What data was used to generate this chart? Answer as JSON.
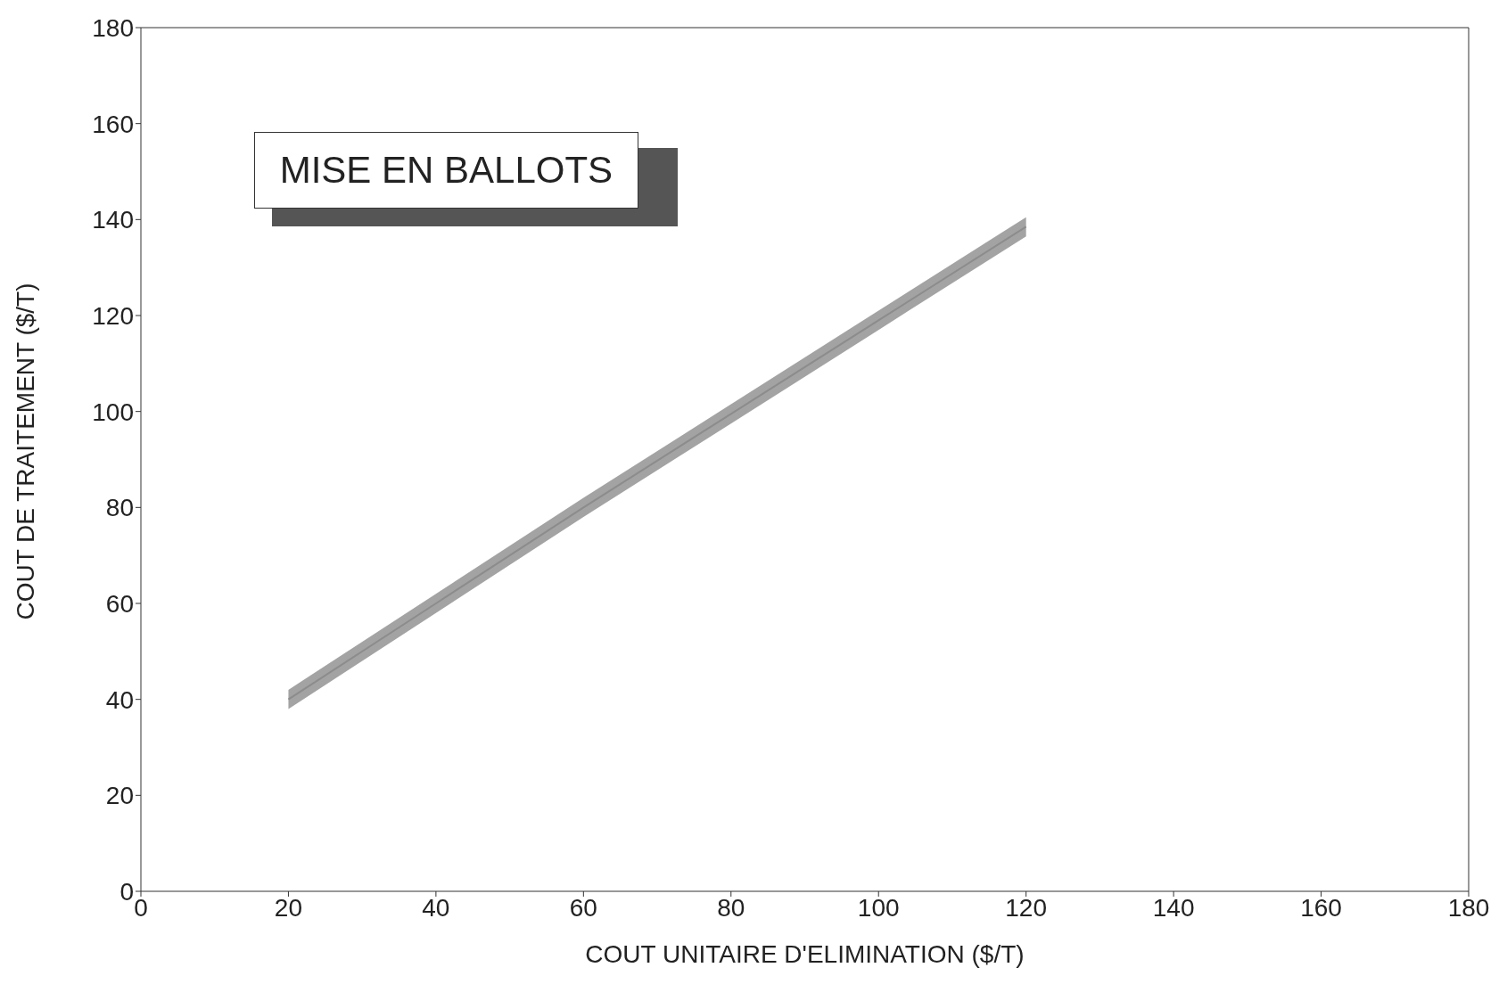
{
  "chart_data": {
    "type": "line",
    "title": "MISE EN BALLOTS",
    "xlabel": "COUT UNITAIRE D'ELIMINATION ($/T)",
    "ylabel": "COUT DE TRAITEMENT ($/T)",
    "series": [
      {
        "color": "#8c8c8c",
        "x": [
          20,
          40,
          60,
          80,
          100,
          120
        ],
        "values": [
          40,
          60,
          80,
          99.5,
          119,
          138.5
        ],
        "lower": [
          38,
          58,
          78,
          97.5,
          117,
          136.5
        ],
        "upper": [
          42,
          62,
          82,
          101.5,
          121,
          140.5
        ]
      }
    ],
    "xlim": [
      0,
      180
    ],
    "xticks": [
      0,
      20,
      40,
      60,
      80,
      100,
      120,
      140,
      160,
      180
    ],
    "ylim": [
      0,
      180
    ],
    "yticks": [
      0,
      20,
      40,
      60,
      80,
      100,
      120,
      140,
      160,
      180
    ],
    "grid": false,
    "legend": false,
    "marker": "none",
    "line_style": "solid"
  }
}
